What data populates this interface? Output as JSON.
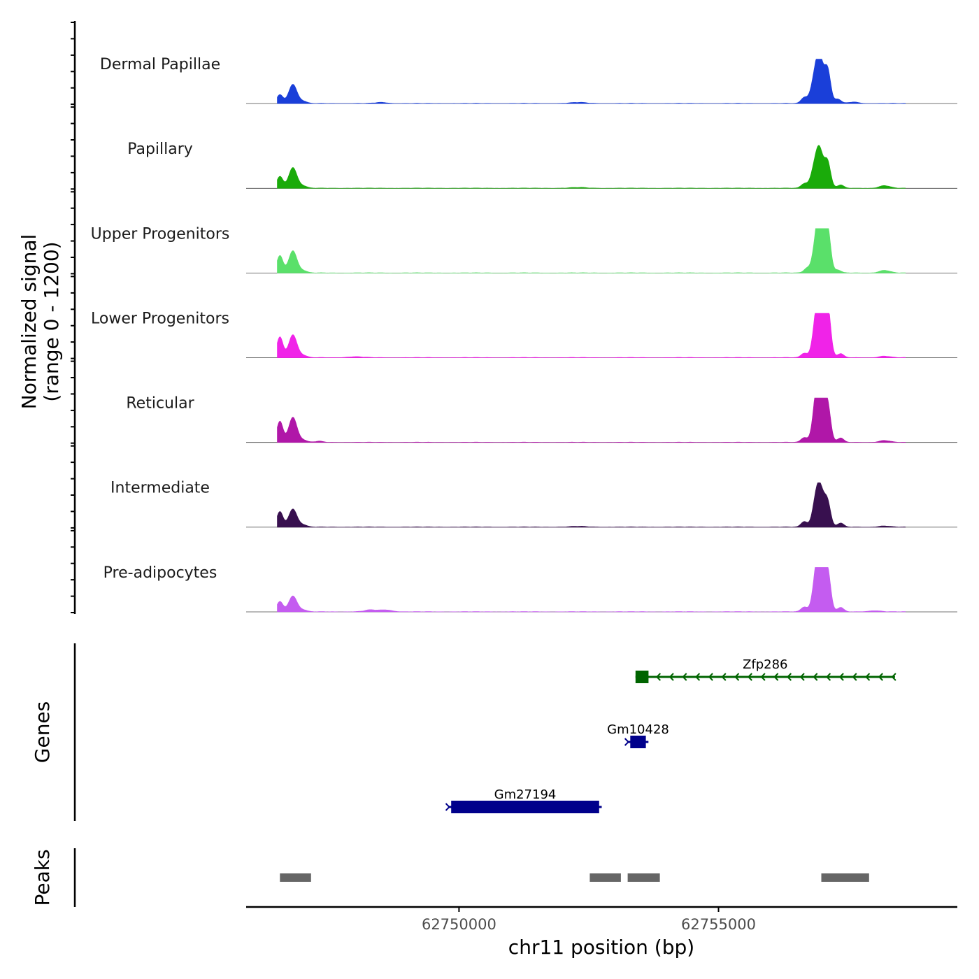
{
  "chart_data": {
    "type": "area",
    "chromosome": "chr11",
    "xlabel": "chr11 position (bp)",
    "xlim": [
      62745900,
      62759600
    ],
    "x_ticks": [
      62750000,
      62755000
    ],
    "x_tick_labels": [
      "62750000",
      "62755000"
    ],
    "signal_ylabel_line1": "Normalized signal",
    "signal_ylabel_line2": "(range 0 - 1200)",
    "ylim": [
      0,
      1200
    ],
    "tracks": [
      {
        "name": "Dermal Papillae",
        "color": "#1a3fd9",
        "peaks": [
          [
            62746550,
            240,
            60
          ],
          [
            62746800,
            520,
            80
          ],
          [
            62747000,
            60,
            70
          ],
          [
            62748500,
            30,
            120
          ],
          [
            62752300,
            30,
            150
          ],
          [
            62756650,
            160,
            60
          ],
          [
            62756850,
            600,
            75
          ],
          [
            62756950,
            1100,
            70
          ],
          [
            62757100,
            900,
            60
          ],
          [
            62757300,
            120,
            60
          ],
          [
            62757600,
            40,
            100
          ]
        ]
      },
      {
        "name": "Papillary",
        "color": "#1aab0a",
        "peaks": [
          [
            62746550,
            320,
            60
          ],
          [
            62746800,
            560,
            80
          ],
          [
            62747000,
            60,
            70
          ],
          [
            62752300,
            20,
            150
          ],
          [
            62756650,
            120,
            60
          ],
          [
            62756850,
            500,
            75
          ],
          [
            62756950,
            900,
            70
          ],
          [
            62757100,
            700,
            60
          ],
          [
            62757350,
            90,
            60
          ],
          [
            62758200,
            70,
            100
          ]
        ]
      },
      {
        "name": "Upper Progenitors",
        "color": "#5ae06a",
        "peaks": [
          [
            62746550,
            470,
            60
          ],
          [
            62746800,
            600,
            80
          ],
          [
            62747000,
            60,
            70
          ],
          [
            62756700,
            120,
            60
          ],
          [
            62756880,
            700,
            70
          ],
          [
            62756970,
            1400,
            70
          ],
          [
            62757100,
            1150,
            60
          ],
          [
            62757300,
            80,
            60
          ],
          [
            62758200,
            70,
            100
          ]
        ]
      },
      {
        "name": "Lower Progenitors",
        "color": "#f023e8",
        "peaks": [
          [
            62746550,
            560,
            60
          ],
          [
            62746800,
            620,
            80
          ],
          [
            62747000,
            60,
            70
          ],
          [
            62748000,
            25,
            150
          ],
          [
            62756650,
            120,
            60
          ],
          [
            62756880,
            850,
            70
          ],
          [
            62756970,
            1550,
            70
          ],
          [
            62757100,
            1350,
            60
          ],
          [
            62757350,
            110,
            60
          ],
          [
            62758200,
            40,
            100
          ]
        ]
      },
      {
        "name": "Reticular",
        "color": "#b017a8",
        "peaks": [
          [
            62746550,
            570,
            60
          ],
          [
            62746800,
            680,
            80
          ],
          [
            62747000,
            60,
            70
          ],
          [
            62747300,
            30,
            80
          ],
          [
            62756650,
            130,
            60
          ],
          [
            62756880,
            900,
            70
          ],
          [
            62756960,
            1450,
            70
          ],
          [
            62757100,
            1000,
            60
          ],
          [
            62757350,
            120,
            60
          ],
          [
            62758200,
            50,
            100
          ]
        ]
      },
      {
        "name": "Intermediate",
        "color": "#38104f",
        "peaks": [
          [
            62746550,
            420,
            60
          ],
          [
            62746800,
            490,
            80
          ],
          [
            62747000,
            60,
            70
          ],
          [
            62752300,
            20,
            150
          ],
          [
            62756650,
            150,
            60
          ],
          [
            62756880,
            700,
            70
          ],
          [
            62756970,
            800,
            70
          ],
          [
            62757100,
            650,
            60
          ],
          [
            62757350,
            110,
            60
          ],
          [
            62758200,
            30,
            100
          ]
        ]
      },
      {
        "name": "Pre-adipocytes",
        "color": "#c45cf0",
        "peaks": [
          [
            62746550,
            280,
            60
          ],
          [
            62746800,
            430,
            80
          ],
          [
            62747000,
            50,
            70
          ],
          [
            62748300,
            50,
            120
          ],
          [
            62748600,
            50,
            120
          ],
          [
            62756650,
            130,
            60
          ],
          [
            62756880,
            800,
            70
          ],
          [
            62756960,
            1280,
            70
          ],
          [
            62757100,
            1100,
            60
          ],
          [
            62757350,
            120,
            60
          ],
          [
            62758000,
            30,
            120
          ]
        ]
      }
    ],
    "genes_ylabel": "Genes",
    "genes": [
      {
        "name": "Zfp286",
        "start": 62753400,
        "end": 62758400,
        "strand": "-",
        "exon_start": 62753400,
        "exon_end": 62753650,
        "color": "#006400"
      },
      {
        "name": "Gm10428",
        "start": 62753250,
        "end": 62753650,
        "strand": "+",
        "exon_start": 62753300,
        "exon_end": 62753600,
        "color": "#00008b"
      },
      {
        "name": "Gm27194",
        "start": 62749800,
        "end": 62752750,
        "strand": "+",
        "exon_start": 62749850,
        "exon_end": 62752700,
        "color": "#00008b"
      }
    ],
    "peaks_ylabel": "Peaks",
    "peak_regions": [
      [
        62746550,
        62747150
      ],
      [
        62752520,
        62753120
      ],
      [
        62753250,
        62753870
      ],
      [
        62756980,
        62757900
      ]
    ],
    "peak_color": "#666666"
  }
}
